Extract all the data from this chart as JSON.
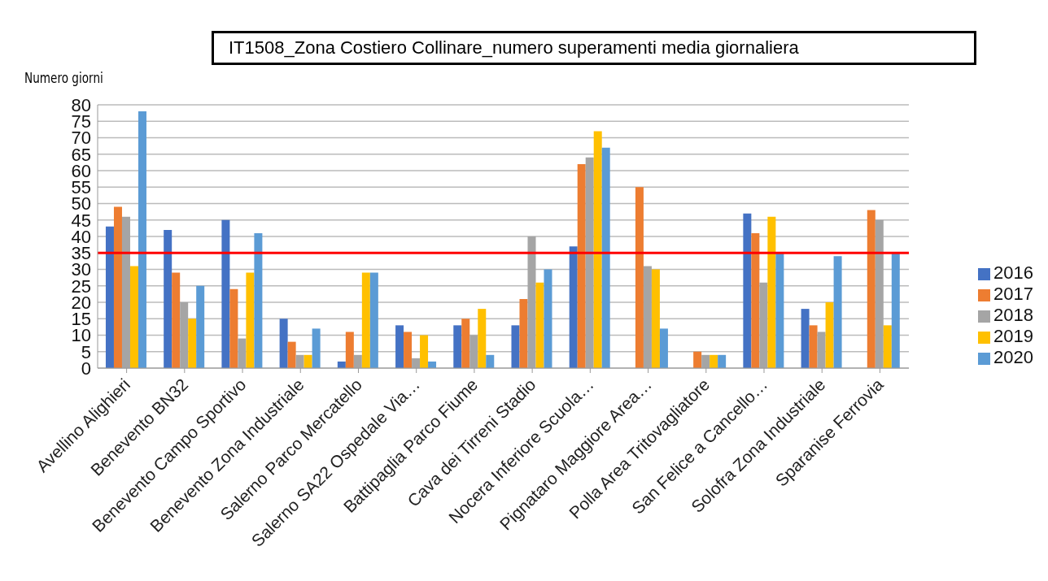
{
  "chart_data": {
    "type": "bar",
    "title": "IT1508_Zona Costiero Collinare_numero  superamenti  media giornaliera",
    "ylabel": "Numero giorni",
    "categories": [
      "Avellino  Alighieri",
      "Benevento BN32",
      "Benevento Campo Sportivo",
      "Benevento Zona Industriale",
      "Salerno Parco Mercatello",
      "Salerno SA22 Ospedale Via…",
      "Battipaglia Parco Fiume",
      "Cava dei Tirreni Stadio",
      "Nocera Inferiore Scuola…",
      "Pignataro Maggiore Area…",
      "Polla Area Tritovagliatore",
      "San Felice a Cancello…",
      "Solofra Zona Industriale",
      "Sparanise Ferrovia"
    ],
    "series": [
      {
        "name": "2016",
        "color": "#4472c4",
        "values": [
          43,
          42,
          45,
          15,
          2,
          13,
          13,
          13,
          37,
          null,
          null,
          47,
          18,
          null
        ]
      },
      {
        "name": "2017",
        "color": "#ed7d31",
        "values": [
          49,
          29,
          24,
          8,
          11,
          11,
          15,
          21,
          62,
          55,
          5,
          41,
          13,
          48
        ]
      },
      {
        "name": "2018",
        "color": "#a5a5a5",
        "values": [
          46,
          20,
          9,
          4,
          4,
          3,
          10,
          40,
          64,
          31,
          4,
          26,
          11,
          45
        ]
      },
      {
        "name": "2019",
        "color": "#ffc000",
        "values": [
          31,
          15,
          29,
          4,
          29,
          10,
          18,
          26,
          72,
          30,
          4,
          46,
          20,
          13
        ]
      },
      {
        "name": "2020",
        "color": "#5b9bd5",
        "values": [
          78,
          25,
          41,
          12,
          29,
          2,
          4,
          30,
          67,
          12,
          4,
          35,
          34,
          35
        ]
      }
    ],
    "ylim": [
      0,
      80
    ],
    "yticks": [
      0,
      5,
      10,
      15,
      20,
      25,
      30,
      35,
      40,
      45,
      50,
      55,
      60,
      65,
      70,
      75,
      80
    ],
    "ref_lines": [
      {
        "axis": "y",
        "value": 35,
        "color": "#ff0000"
      }
    ],
    "grid": "y",
    "legend": "right"
  }
}
